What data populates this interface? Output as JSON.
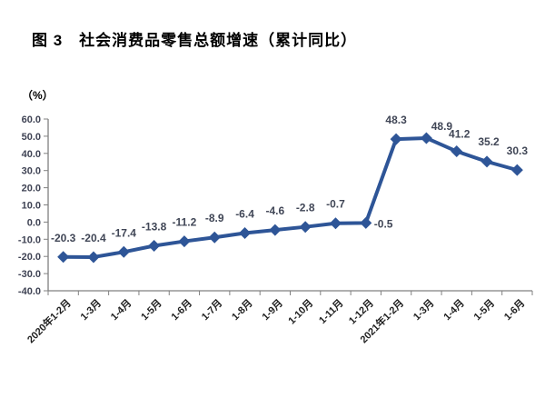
{
  "title": "图 3　社会消费品零售总额增速（累计同比）",
  "chart_data": {
    "type": "line",
    "title": "图 3　社会消费品零售总额增速（累计同比）",
    "unit_label": "（%）",
    "categories": [
      "2020年1-2月",
      "1-3月",
      "1-4月",
      "1-5月",
      "1-6月",
      "1-7月",
      "1-8月",
      "1-9月",
      "1-10月",
      "1-11月",
      "1-12月",
      "2021年1-2月",
      "1-3月",
      "1-4月",
      "1-5月",
      "1-6月"
    ],
    "values": [
      -20.3,
      -20.4,
      -17.4,
      -13.8,
      -11.2,
      -8.9,
      -6.4,
      -4.6,
      -2.8,
      -0.7,
      -0.5,
      48.3,
      48.9,
      41.2,
      35.2,
      30.3
    ],
    "data_labels": [
      "-20.3",
      "-20.4",
      "-17.4",
      "-13.8",
      "-11.2",
      "-8.9",
      "-6.4",
      "-4.6",
      "-2.8",
      "-0.7",
      "-0.5",
      "48.3",
      "48.9",
      "41.2",
      "35.2",
      "30.3"
    ],
    "xlabel": "",
    "ylabel": "（%）",
    "ylim": [
      -40,
      60
    ],
    "ytick_step": 10,
    "ytick_labels": [
      "60.0",
      "50.0",
      "40.0",
      "30.0",
      "20.0",
      "10.0",
      "0.0",
      "-10.0",
      "-20.0",
      "-30.0",
      "-40.0"
    ],
    "grid": false,
    "legend_position": "none",
    "marker": "diamond",
    "line_color": "#2E5597",
    "marker_color": "#2E5597",
    "data_label_color": "#404656",
    "tick_label_color": "#3F4354",
    "category_label_color": "#1F1F1F",
    "axis_color": "#808080"
  }
}
